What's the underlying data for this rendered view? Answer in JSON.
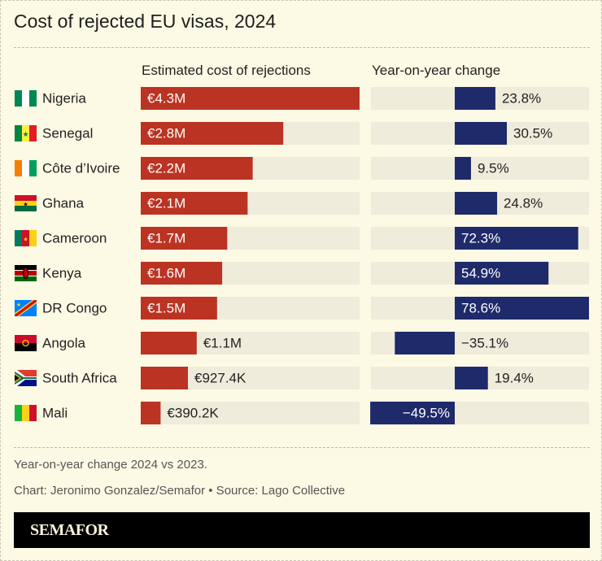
{
  "title": "Cost of rejected EU visas, 2024",
  "notes": [
    "Year-on-year change 2024 vs 2023.",
    "Chart: Jeronimo Gonzalez/Semafor • Source: Lago Collective"
  ],
  "logo": "SEMAFOR",
  "colors": {
    "cost": "#bb3322",
    "change": "#1f2a6b",
    "track": "#efecdc",
    "background": "#fcf9e4"
  },
  "chart_data": {
    "type": "bar",
    "title": "Cost of rejected EU visas, 2024",
    "categories": [
      "Nigeria",
      "Senegal",
      "Côte d’Ivoire",
      "Ghana",
      "Cameroon",
      "Kenya",
      "DR Congo",
      "Angola",
      "South Africa",
      "Mali"
    ],
    "flags": [
      "nigeria-flag-icon",
      "senegal-flag-icon",
      "cote-divoire-flag-icon",
      "ghana-flag-icon",
      "cameroon-flag-icon",
      "kenya-flag-icon",
      "dr-congo-flag-icon",
      "angola-flag-icon",
      "south-africa-flag-icon",
      "mali-flag-icon"
    ],
    "series": [
      {
        "name": "Estimated cost of rejections",
        "unit": "EUR",
        "values": [
          4300000,
          2800000,
          2200000,
          2100000,
          1700000,
          1600000,
          1500000,
          1100000,
          927400,
          390200
        ],
        "labels": [
          "€4.3M",
          "€2.8M",
          "€2.2M",
          "€2.1M",
          "€1.7M",
          "€1.6M",
          "€1.5M",
          "€1.1M",
          "€927.4K",
          "€390.2K"
        ],
        "xlim": [
          0,
          4300000
        ]
      },
      {
        "name": "Year-on-year change",
        "unit": "%",
        "values": [
          23.8,
          30.5,
          9.5,
          24.8,
          72.3,
          54.9,
          78.6,
          -35.1,
          19.4,
          -49.5
        ],
        "labels": [
          "23.8%",
          "30.5%",
          "9.5%",
          "24.8%",
          "72.3%",
          "54.9%",
          "78.6%",
          "−35.1%",
          "19.4%",
          "−49.5%"
        ],
        "xlim": [
          -49.5,
          78.6
        ]
      }
    ],
    "grid": false
  }
}
